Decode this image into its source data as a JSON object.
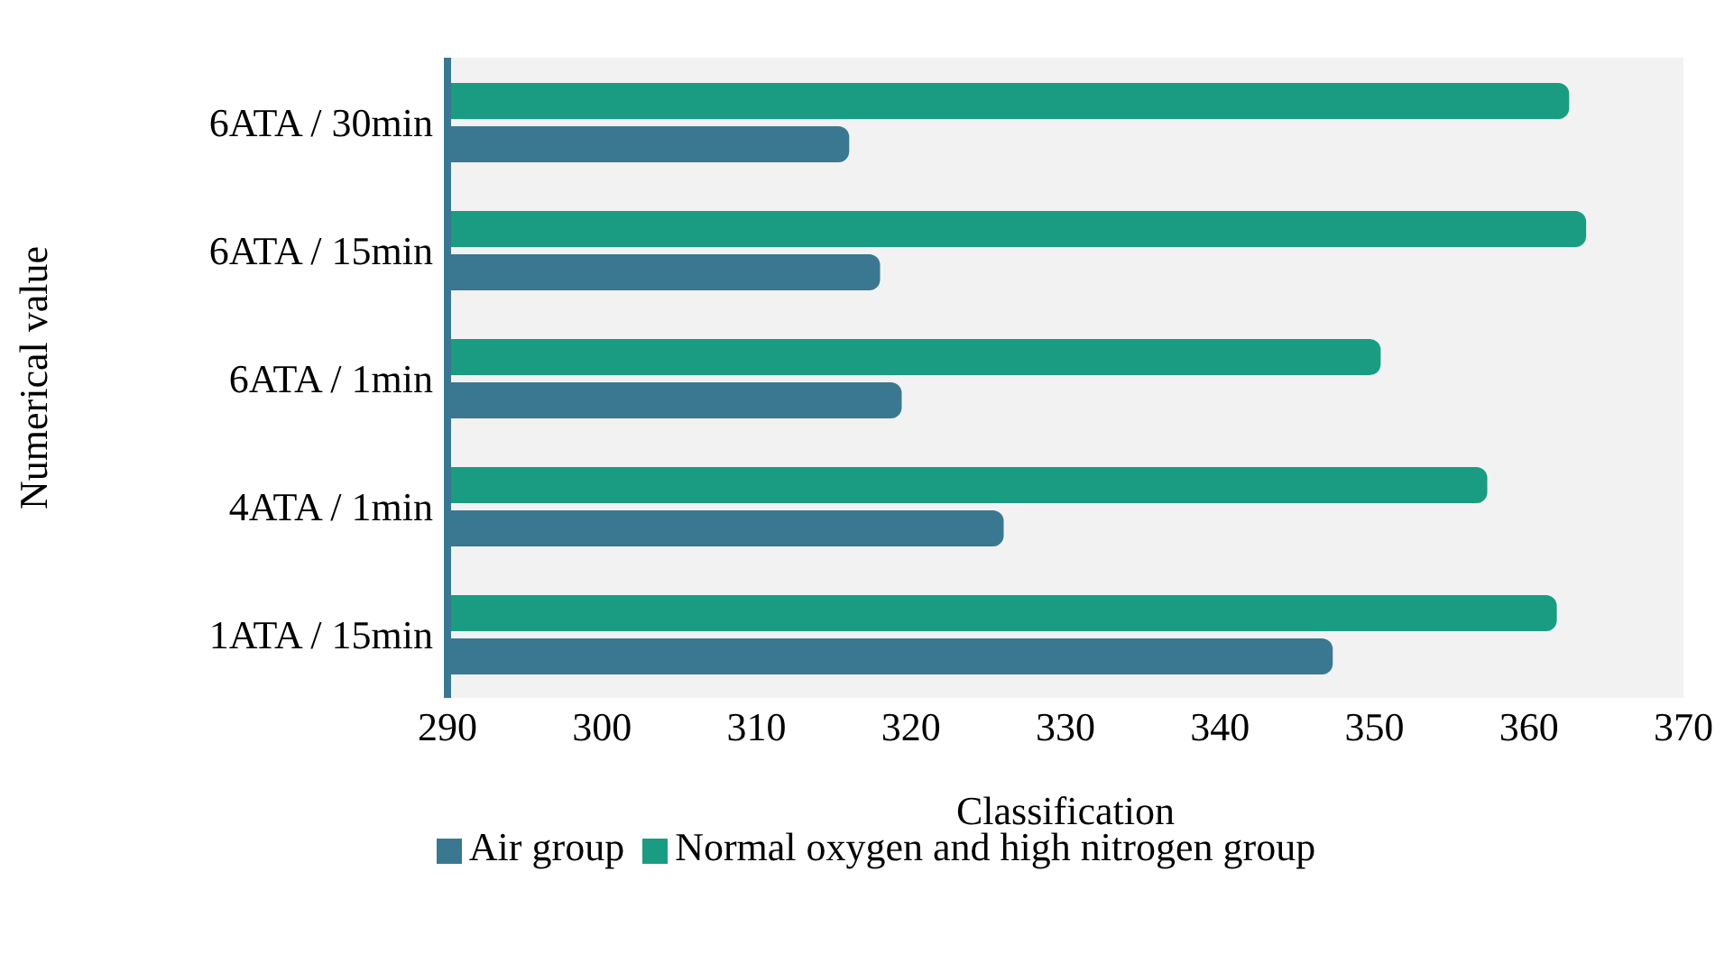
{
  "chart_data": {
    "type": "bar",
    "orientation": "horizontal",
    "xlabel": "Classification",
    "ylabel": "Numerical value",
    "categories": [
      "6ATA / 30min",
      "6ATA / 15min",
      "6ATA / 1min",
      "4ATA / 1min",
      "1ATA / 15min"
    ],
    "series": [
      {
        "name": "Normal oxygen and high nitrogen group",
        "color": "#1a9c82",
        "values": [
          362.6,
          363.7,
          350.4,
          357.3,
          361.8
        ]
      },
      {
        "name": "Air group",
        "color": "#3a7891",
        "values": [
          316,
          318,
          319.4,
          326,
          347.3
        ]
      }
    ],
    "xlim": [
      290,
      370
    ],
    "xticks": [
      290,
      300,
      310,
      320,
      330,
      340,
      350,
      360,
      370
    ],
    "grid": false,
    "legend": "bottom"
  }
}
